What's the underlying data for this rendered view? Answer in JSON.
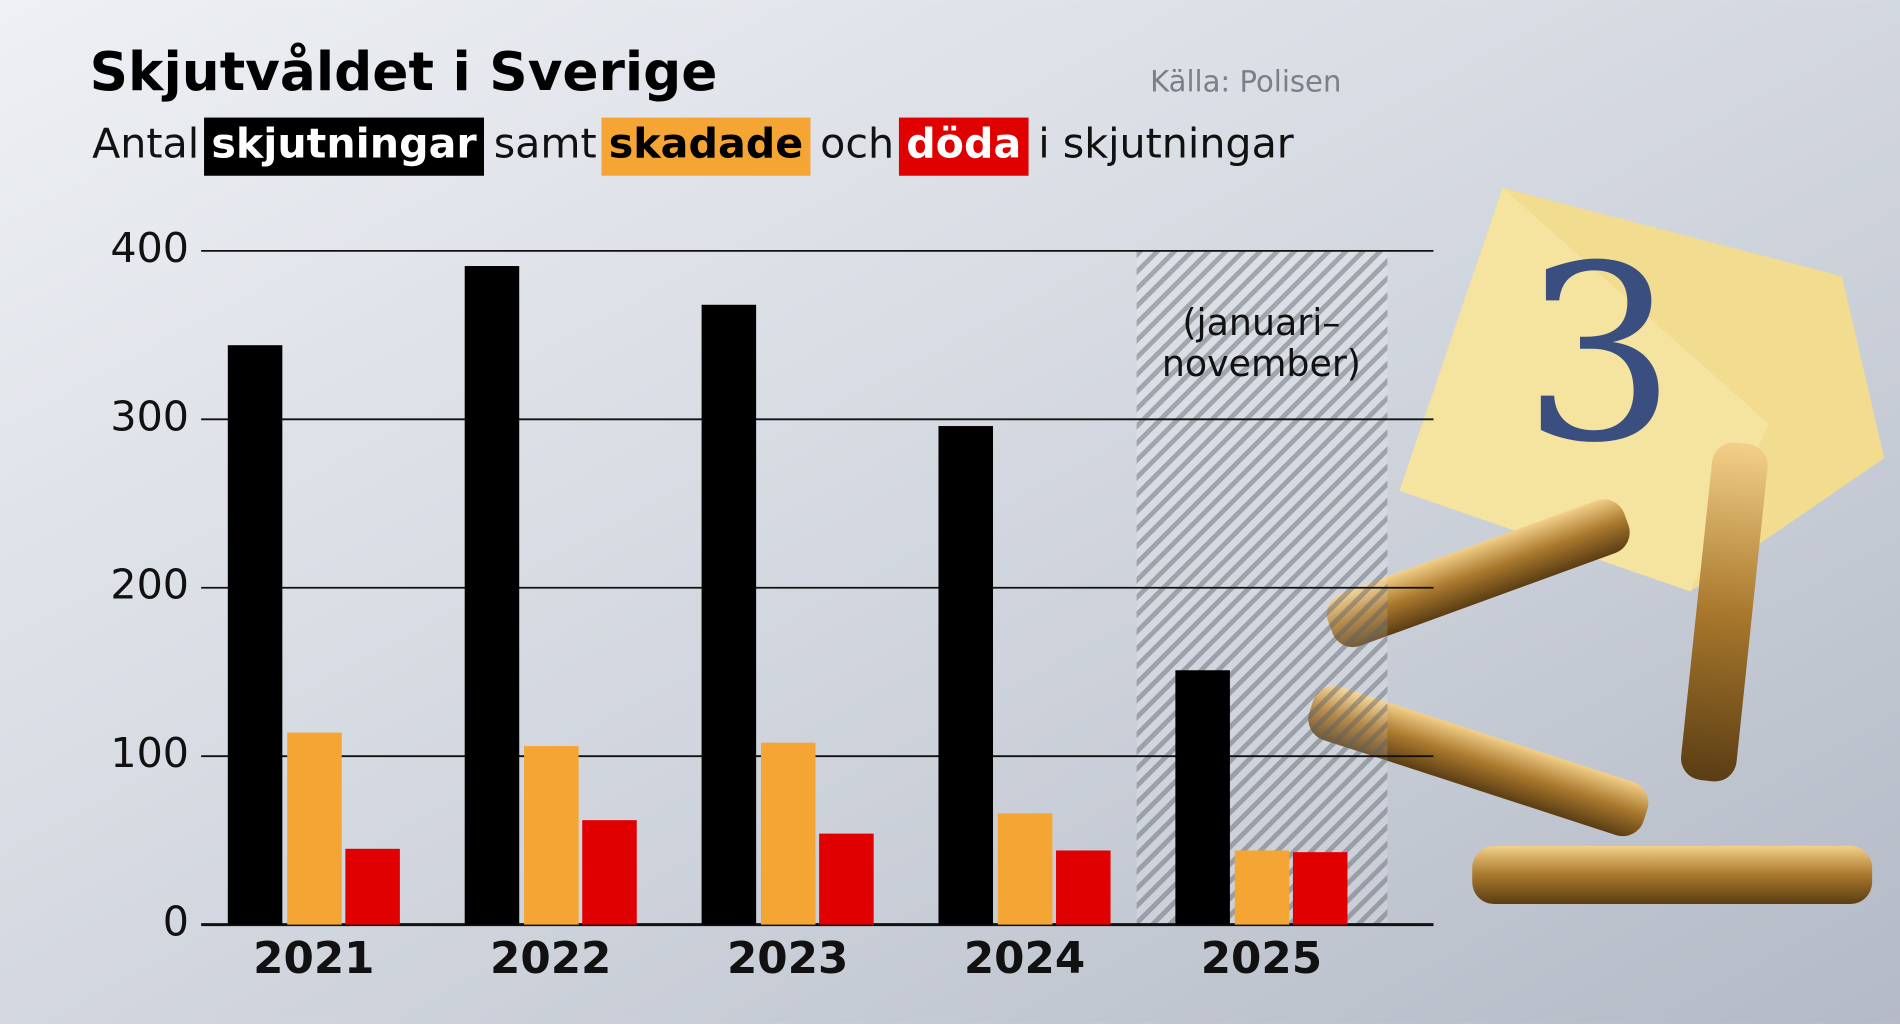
{
  "chart_data": {
    "type": "bar",
    "title": "Skjutvåldet i Sverige",
    "source": "Källa: Polisen",
    "subtitle_words": [
      "Antal",
      "samt",
      "och",
      "i skjutningar"
    ],
    "annotation": [
      "(januari–",
      "november)"
    ],
    "marker_label": "3",
    "categories": [
      "2021",
      "2022",
      "2023",
      "2024",
      "2025"
    ],
    "series": [
      {
        "name": "skjutningar",
        "color": "#000000",
        "values": [
          344,
          391,
          368,
          296,
          151
        ]
      },
      {
        "name": "skadade",
        "color": "#f4a533",
        "values": [
          114,
          106,
          108,
          66,
          44
        ]
      },
      {
        "name": "döda",
        "color": "#e00000",
        "values": [
          45,
          62,
          54,
          44,
          43
        ]
      }
    ],
    "ylim": [
      0,
      400
    ],
    "yticks": [
      0,
      100,
      200,
      300,
      400
    ],
    "grid": true
  }
}
